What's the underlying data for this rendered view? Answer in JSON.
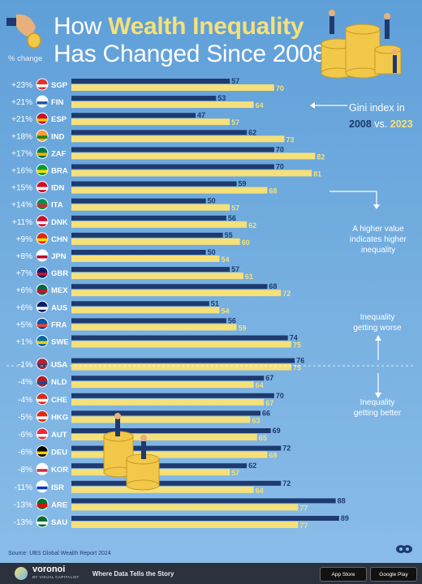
{
  "header": {
    "title_line1_prefix": "How ",
    "title_line1_accent": "Wealth Inequality",
    "title_line2": "Has Changed Since 2008",
    "pct_change_label": "% change"
  },
  "legend": {
    "line1": "Gini index in",
    "year_2008": "2008",
    "vs": "vs.",
    "year_2023": "2023"
  },
  "notes": {
    "higher_value": [
      "A higher value",
      "indicates higher",
      "inequality"
    ],
    "worse": [
      "Inequality",
      "getting worse"
    ],
    "better": [
      "Inequality",
      "getting better"
    ]
  },
  "source": "Source: UBS Global Wealth Report 2024",
  "footer": {
    "brand": "voronoi",
    "brand_sub": "BY VISUAL CAPITALIST",
    "tagline": "Where Data Tells the Story",
    "app_store": "App Store",
    "google_play": "Google Play"
  },
  "colors": {
    "bar_2008": "#1e3a6e",
    "bar_2023": "#f5e07a",
    "label_2008": "#1e3a6e",
    "label_2023": "#f5e07a",
    "accent": "#f5e07a"
  },
  "chart_data": {
    "type": "bar",
    "orientation": "horizontal",
    "grid": false,
    "series": [
      {
        "name": "2008",
        "values": [
          57,
          53,
          47,
          62,
          70,
          70,
          59,
          50,
          56,
          55,
          50,
          57,
          68,
          51,
          56,
          74,
          76,
          67,
          70,
          66,
          69,
          72,
          62,
          72,
          88,
          89
        ]
      },
      {
        "name": "2023",
        "values": [
          70,
          64,
          57,
          73,
          82,
          81,
          68,
          57,
          62,
          60,
          54,
          61,
          72,
          54,
          59,
          75,
          75,
          64,
          67,
          63,
          65,
          68,
          57,
          64,
          77,
          77
        ]
      }
    ],
    "categories": [
      "SGP",
      "FIN",
      "ESP",
      "IND",
      "ZAF",
      "BRA",
      "IDN",
      "ITA",
      "DNK",
      "CHN",
      "JPN",
      "GBR",
      "MEX",
      "AUS",
      "FRA",
      "SWE",
      "USA",
      "NLD",
      "CHE",
      "HKG",
      "AUT",
      "DEU",
      "KOR",
      "ISR",
      "ARE",
      "SAU"
    ],
    "pct_change": [
      "+23%",
      "+21%",
      "+21%",
      "+18%",
      "+17%",
      "+16%",
      "+15%",
      "+14%",
      "+11%",
      "+9%",
      "+8%",
      "+7%",
      "+6%",
      "+6%",
      "+5%",
      "+1%",
      "-1%",
      "-4%",
      "-4%",
      "-5%",
      "-6%",
      "-6%",
      "-8%",
      "-11%",
      "-13%",
      "-13%"
    ],
    "flag_colors": [
      [
        "#e0312f",
        "#ffffff"
      ],
      [
        "#ffffff",
        "#1f57a6"
      ],
      [
        "#c8102e",
        "#f5c400"
      ],
      [
        "#ff9933",
        "#138808"
      ],
      [
        "#007a4d",
        "#f4b400"
      ],
      [
        "#009c3b",
        "#ffdf00"
      ],
      [
        "#ce1126",
        "#ffffff"
      ],
      [
        "#009246",
        "#ce2b37"
      ],
      [
        "#c8102e",
        "#ffffff"
      ],
      [
        "#de2910",
        "#ffde00"
      ],
      [
        "#ffffff",
        "#bc002d"
      ],
      [
        "#012169",
        "#c8102e"
      ],
      [
        "#006847",
        "#ce1126"
      ],
      [
        "#012169",
        "#ffffff"
      ],
      [
        "#0055a4",
        "#ef4135"
      ],
      [
        "#006aa7",
        "#fecc00"
      ],
      [
        "#b22234",
        "#3c3b6e"
      ],
      [
        "#ae1c28",
        "#21468b"
      ],
      [
        "#d52b1e",
        "#ffffff"
      ],
      [
        "#de2910",
        "#ffffff"
      ],
      [
        "#ed2939",
        "#ffffff"
      ],
      [
        "#000000",
        "#ffce00"
      ],
      [
        "#ffffff",
        "#cd2e3a"
      ],
      [
        "#ffffff",
        "#0038b8"
      ],
      [
        "#00732f",
        "#ff0000"
      ],
      [
        "#006c35",
        "#ffffff"
      ]
    ],
    "xlim": [
      0,
      100
    ]
  }
}
